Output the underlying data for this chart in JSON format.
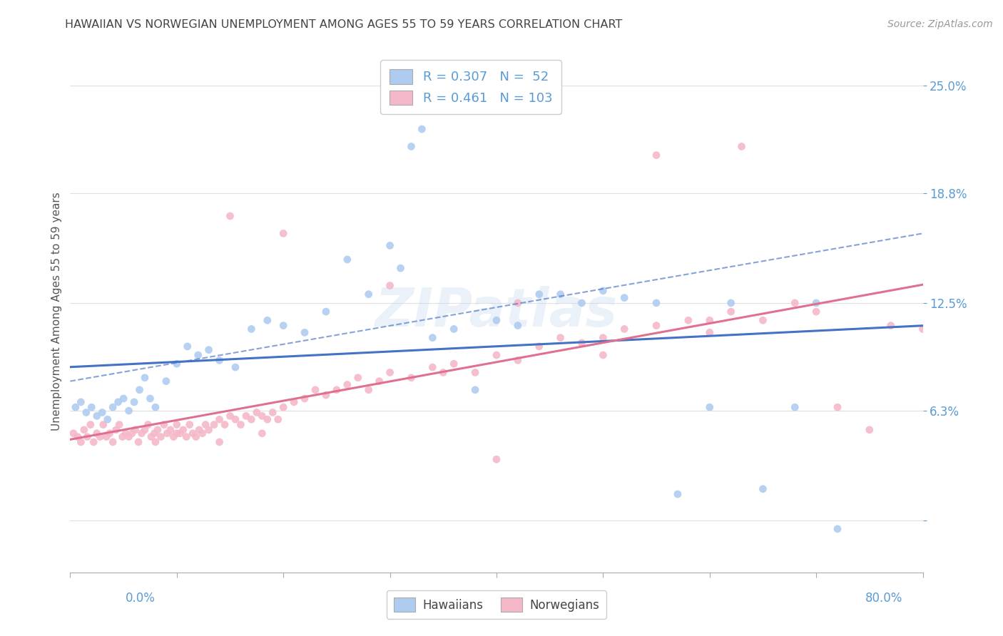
{
  "title": "HAWAIIAN VS NORWEGIAN UNEMPLOYMENT AMONG AGES 55 TO 59 YEARS CORRELATION CHART",
  "source": "Source: ZipAtlas.com",
  "ylabel": "Unemployment Among Ages 55 to 59 years",
  "xlim": [
    0.0,
    80.0
  ],
  "ylim": [
    -3.0,
    27.0
  ],
  "ytick_vals": [
    0.0,
    6.3,
    12.5,
    18.8,
    25.0
  ],
  "ytick_labels": [
    "",
    "6.3%",
    "12.5%",
    "18.8%",
    "25.0%"
  ],
  "background_color": "#ffffff",
  "grid_color": "#e0e0e0",
  "title_color": "#444444",
  "axis_label_color": "#5b9bd5",
  "hawaiian_color": "#aeccf0",
  "norwegian_color": "#f5b8c8",
  "hawaiian_line_color": "#4472c4",
  "norwegian_line_color": "#e07090",
  "hawaiian_R": 0.307,
  "hawaiian_N": 52,
  "norwegian_R": 0.461,
  "norwegian_N": 103,
  "haw_x": [
    0.5,
    1.0,
    1.5,
    2.0,
    2.5,
    3.0,
    3.5,
    4.0,
    4.5,
    5.0,
    5.5,
    6.0,
    6.5,
    7.0,
    7.5,
    8.0,
    9.0,
    10.0,
    11.0,
    12.0,
    13.0,
    14.0,
    15.5,
    17.0,
    18.5,
    20.0,
    22.0,
    24.0,
    26.0,
    28.0,
    30.0,
    31.0,
    32.0,
    33.0,
    34.0,
    36.0,
    38.0,
    40.0,
    42.0,
    44.0,
    46.0,
    48.0,
    50.0,
    52.0,
    55.0,
    57.0,
    60.0,
    62.0,
    65.0,
    68.0,
    70.0,
    72.0
  ],
  "haw_y": [
    6.5,
    6.8,
    6.2,
    6.5,
    6.0,
    6.2,
    5.8,
    6.5,
    6.8,
    7.0,
    6.3,
    6.8,
    7.5,
    8.2,
    7.0,
    6.5,
    8.0,
    9.0,
    10.0,
    9.5,
    9.8,
    9.2,
    8.8,
    11.0,
    11.5,
    11.2,
    10.8,
    12.0,
    15.0,
    13.0,
    15.8,
    14.5,
    21.5,
    22.5,
    10.5,
    11.0,
    7.5,
    11.5,
    11.2,
    13.0,
    13.0,
    12.5,
    13.2,
    12.8,
    12.5,
    1.5,
    6.5,
    12.5,
    1.8,
    6.5,
    12.5,
    -0.5
  ],
  "nor_x": [
    0.3,
    0.7,
    1.0,
    1.3,
    1.6,
    1.9,
    2.2,
    2.5,
    2.8,
    3.1,
    3.4,
    3.7,
    4.0,
    4.3,
    4.6,
    4.9,
    5.2,
    5.5,
    5.8,
    6.1,
    6.4,
    6.7,
    7.0,
    7.3,
    7.6,
    7.9,
    8.2,
    8.5,
    8.8,
    9.1,
    9.4,
    9.7,
    10.0,
    10.3,
    10.6,
    10.9,
    11.2,
    11.5,
    11.8,
    12.1,
    12.4,
    12.7,
    13.0,
    13.5,
    14.0,
    14.5,
    15.0,
    15.5,
    16.0,
    16.5,
    17.0,
    17.5,
    18.0,
    18.5,
    19.0,
    19.5,
    20.0,
    21.0,
    22.0,
    23.0,
    24.0,
    25.0,
    26.0,
    27.0,
    28.0,
    29.0,
    30.0,
    32.0,
    34.0,
    36.0,
    38.0,
    40.0,
    42.0,
    44.0,
    46.0,
    48.0,
    50.0,
    52.0,
    55.0,
    58.0,
    60.0,
    62.0,
    65.0,
    68.0,
    70.0,
    72.0,
    75.0,
    77.0,
    80.0,
    15.0,
    20.0,
    30.0,
    42.0,
    55.0,
    63.0,
    50.0,
    60.0,
    40.0,
    35.0,
    8.0,
    10.0,
    14.0,
    18.0
  ],
  "nor_y": [
    5.0,
    4.8,
    4.5,
    5.2,
    4.8,
    5.5,
    4.5,
    5.0,
    4.8,
    5.5,
    4.8,
    5.0,
    4.5,
    5.2,
    5.5,
    4.8,
    5.0,
    4.8,
    5.0,
    5.2,
    4.5,
    5.0,
    5.2,
    5.5,
    4.8,
    5.0,
    5.2,
    4.8,
    5.5,
    5.0,
    5.2,
    4.8,
    5.5,
    5.0,
    5.2,
    4.8,
    5.5,
    5.0,
    4.8,
    5.2,
    5.0,
    5.5,
    5.2,
    5.5,
    5.8,
    5.5,
    6.0,
    5.8,
    5.5,
    6.0,
    5.8,
    6.2,
    6.0,
    5.8,
    6.2,
    5.8,
    6.5,
    6.8,
    7.0,
    7.5,
    7.2,
    7.5,
    7.8,
    8.2,
    7.5,
    8.0,
    8.5,
    8.2,
    8.8,
    9.0,
    8.5,
    9.5,
    9.2,
    10.0,
    10.5,
    10.2,
    10.5,
    11.0,
    11.2,
    11.5,
    10.8,
    12.0,
    11.5,
    12.5,
    12.0,
    6.5,
    5.2,
    11.2,
    11.0,
    17.5,
    16.5,
    13.5,
    12.5,
    21.0,
    21.5,
    9.5,
    11.5,
    3.5,
    8.5,
    4.5,
    5.0,
    4.5,
    5.0
  ]
}
